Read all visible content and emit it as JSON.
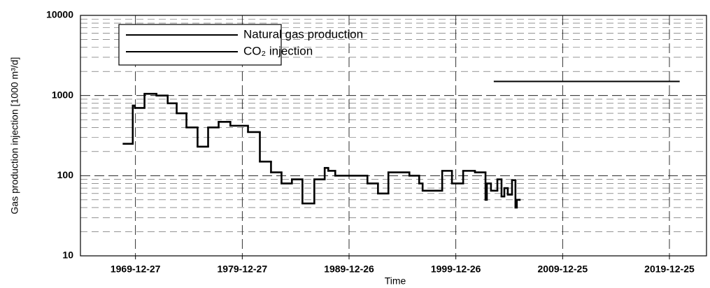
{
  "chart_data": {
    "type": "line",
    "xlabel": "Time",
    "ylabel": "Gas production injection [1000 m³/d]",
    "xlim": [
      "1964-11-01",
      "2023-06-15"
    ],
    "xticks": [
      "1969-12-27",
      "1979-12-27",
      "1989-12-26",
      "1999-12-26",
      "2009-12-25",
      "2019-12-25"
    ],
    "ylim": [
      10,
      10000
    ],
    "yticks": [
      10,
      100,
      1000,
      10000
    ],
    "yscale": "log",
    "grid": true,
    "minor_grid": true,
    "legend": "upper left",
    "series": [
      {
        "name": "Natural gas production",
        "color": "#000000",
        "step": "post",
        "x": [
          "1968-11-15",
          "1969-09-25",
          "1969-12-05",
          "1970-11-01",
          "1971-12-15",
          "1973-01-01",
          "1973-11-05",
          "1974-10-05",
          "1975-10-20",
          "1976-10-15",
          "1977-10-10",
          "1978-11-15",
          "1980-07-10",
          "1981-08-20",
          "1982-09-05",
          "1983-08-30",
          "1984-08-20",
          "1985-08-15",
          "1986-09-25",
          "1987-09-15",
          "1988-01-15",
          "1988-09-10",
          "1991-09-15",
          "1992-09-10",
          "1993-09-01",
          "1995-08-20",
          "1996-07-20",
          "1996-11-15",
          "1998-09-15",
          "1999-08-15",
          "2000-09-01",
          "2001-10-10",
          "2002-10-05",
          "2002-11-20",
          "2003-04-10",
          "2003-11-15",
          "2004-04-05",
          "2004-07-10",
          "2004-11-05",
          "2005-03-30",
          "2005-07-25",
          "2005-09-10",
          "2005-12-15"
        ],
        "values": [
          250,
          750,
          700,
          1050,
          1000,
          800,
          600,
          400,
          230,
          400,
          470,
          420,
          350,
          150,
          110,
          80,
          90,
          45,
          90,
          125,
          115,
          100,
          80,
          60,
          110,
          100,
          80,
          65,
          115,
          80,
          115,
          110,
          50,
          80,
          65,
          90,
          55,
          70,
          58,
          88,
          40,
          50,
          50
        ]
      },
      {
        "name": "CO₂  injection",
        "color": "#000000",
        "x": [
          "2003-07-15",
          "2020-12-10"
        ],
        "values": [
          1500,
          1500
        ]
      }
    ]
  }
}
